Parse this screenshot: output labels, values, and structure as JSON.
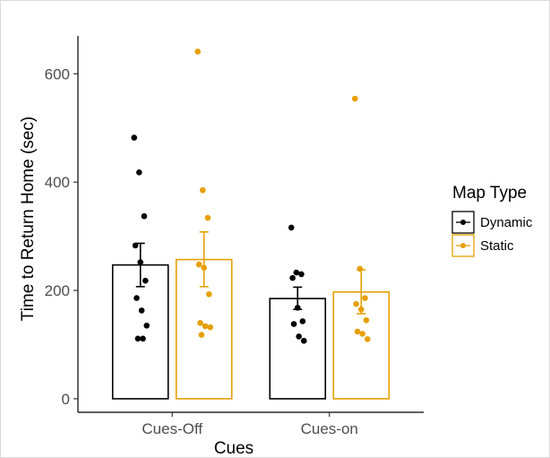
{
  "chart_data": {
    "type": "bar",
    "title": "",
    "xlabel": "Cues",
    "ylabel": "Time to Return Home (sec)",
    "categories": [
      "Cues-Off",
      "Cues-on"
    ],
    "ylim": [
      -25,
      670
    ],
    "yticks": [
      0,
      200,
      400,
      600
    ],
    "grid": false,
    "legend": {
      "title": "Map Type",
      "placement": "right"
    },
    "series": [
      {
        "name": "Dynamic",
        "color": "#000000",
        "values": [
          247,
          185
        ],
        "error_low": [
          207,
          165
        ],
        "error_high": [
          287,
          206
        ],
        "points": [
          [
            482,
            418,
            337,
            283,
            252,
            218,
            186,
            163,
            135,
            111,
            111
          ],
          [
            316,
            233,
            230,
            223,
            168,
            143,
            138,
            115,
            107
          ]
        ]
      },
      {
        "name": "Static",
        "color": "#E69F00",
        "values": [
          257,
          197
        ],
        "error_low": [
          207,
          157
        ],
        "error_high": [
          308,
          238
        ],
        "points": [
          [
            641,
            385,
            334,
            248,
            242,
            193,
            140,
            134,
            132,
            118
          ],
          [
            554,
            240,
            186,
            175,
            165,
            145,
            124,
            120,
            110
          ]
        ]
      }
    ]
  }
}
